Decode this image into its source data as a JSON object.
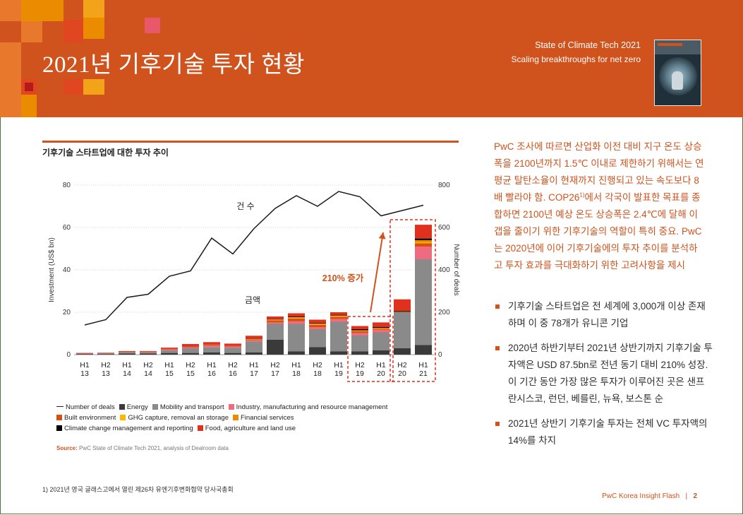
{
  "header": {
    "title": "2021년 기후기술 투자 현황",
    "report_title": "State of Climate Tech 2021",
    "report_subtitle": "Scaling breakthroughs for net zero"
  },
  "chart_title": "기후기술 스타트업에 대한 투자 추이",
  "chart_data": {
    "type": "bar",
    "categories": [
      [
        "H1",
        "13"
      ],
      [
        "H2",
        "13"
      ],
      [
        "H1",
        "14"
      ],
      [
        "H2",
        "14"
      ],
      [
        "H1",
        "15"
      ],
      [
        "H2",
        "15"
      ],
      [
        "H1",
        "16"
      ],
      [
        "H2",
        "16"
      ],
      [
        "H1",
        "17"
      ],
      [
        "H2",
        "17"
      ],
      [
        "H1",
        "18"
      ],
      [
        "H2",
        "18"
      ],
      [
        "H1",
        "19"
      ],
      [
        "H2",
        "19"
      ],
      [
        "H1",
        "20"
      ],
      [
        "H2",
        "20"
      ],
      [
        "H1",
        "21"
      ]
    ],
    "ylabel": "Investment (US$ bn)",
    "y2label": "Number of deals",
    "ylim": [
      0,
      80
    ],
    "y2lim": [
      0,
      800
    ],
    "yticks": [
      "0",
      "20",
      "40",
      "60",
      "80"
    ],
    "y2ticks": [
      "0",
      "200",
      "400",
      "600",
      "800"
    ],
    "series": [
      {
        "name": "Energy",
        "color": "#3a3a3a",
        "values": [
          0.3,
          0.3,
          0.6,
          0.5,
          0.8,
          0.8,
          1.0,
          0.8,
          1.0,
          7.0,
          1.5,
          3.5,
          1.5,
          1.5,
          2.0,
          3.0,
          4.5
        ]
      },
      {
        "name": "Mobility and transport",
        "color": "#8a8a8a",
        "values": [
          0.2,
          0.3,
          0.6,
          0.6,
          1.3,
          2.2,
          2.6,
          2.5,
          5.2,
          7.5,
          13.0,
          8.5,
          14.0,
          7.5,
          8.5,
          17.0,
          40.5
        ]
      },
      {
        "name": "Industry, manufacturing and resource management",
        "color": "#ee6b80",
        "values": [
          0.1,
          0.1,
          0.1,
          0.1,
          0.4,
          0.5,
          0.7,
          0.5,
          0.6,
          0.7,
          1.2,
          1.0,
          1.3,
          1.2,
          1.2,
          0,
          6.0
        ]
      },
      {
        "name": "Built environment",
        "color": "#d84f14",
        "values": [
          0.1,
          0.1,
          0.2,
          0.2,
          0.3,
          0.3,
          0.6,
          0.4,
          0.4,
          1.0,
          1.4,
          1.0,
          1.1,
          0.8,
          0.5,
          0,
          1.5
        ]
      },
      {
        "name": "GHG capture, removal an storage",
        "color": "#ffb600",
        "values": [
          0,
          0,
          0,
          0,
          0,
          0,
          0,
          0,
          0.1,
          0.2,
          0.3,
          0.3,
          0.3,
          0.2,
          0.1,
          0,
          0.5
        ]
      },
      {
        "name": "Financial services",
        "color": "#eb8c00",
        "values": [
          0,
          0,
          0,
          0,
          0,
          0,
          0,
          0,
          0.2,
          0.2,
          0.3,
          0.3,
          0.3,
          0.3,
          0.3,
          0.2,
          1.0
        ]
      },
      {
        "name": "Climate change management and reporting",
        "color": "#000000",
        "values": [
          0,
          0,
          0,
          0,
          0,
          0,
          0,
          0,
          0.1,
          0.2,
          0.3,
          0.3,
          0.3,
          0.5,
          0.4,
          0.4,
          0.8
        ]
      },
      {
        "name": "Food, agriculture and land use",
        "color": "#e0301e",
        "values": [
          0.1,
          0.1,
          0.2,
          0.3,
          0.5,
          1.2,
          1.0,
          1.0,
          1.3,
          1.2,
          1.5,
          1.6,
          1.2,
          1.5,
          2.2,
          5.5,
          6.5
        ]
      }
    ],
    "deals": {
      "name": "Number of deals",
      "values": [
        140,
        165,
        270,
        285,
        370,
        395,
        550,
        475,
        595,
        690,
        750,
        700,
        770,
        745,
        655,
        680,
        705
      ]
    },
    "annotations": {
      "deals_label": "건 수",
      "investment_label": "금액",
      "growth_label": "210% 증가"
    }
  },
  "legend_rows": [
    [
      {
        "type": "line",
        "label": "Number of deals"
      },
      {
        "type": "swatch",
        "color": "#3a3a3a",
        "label": "Energy"
      },
      {
        "type": "swatch",
        "color": "#8a8a8a",
        "label": "Mobility and transport"
      },
      {
        "type": "swatch",
        "color": "#ee6b80",
        "label": "Industry, manufacturing and resource management"
      }
    ],
    [
      {
        "type": "swatch",
        "color": "#d84f14",
        "label": "Built environment"
      },
      {
        "type": "swatch",
        "color": "#ffb600",
        "label": "GHG capture, removal an storage"
      },
      {
        "type": "swatch",
        "color": "#eb8c00",
        "label": "Financial services"
      }
    ],
    [
      {
        "type": "swatch",
        "color": "#000000",
        "label": "Climate change management and reporting"
      },
      {
        "type": "swatch",
        "color": "#e0301e",
        "label": "Food, agriculture and land use"
      }
    ]
  ],
  "source_label": "Source:",
  "source_text": " PwC State of Climate Tech 2021, analysis of Dealroom data",
  "right_para_a": "PwC 조사에 따르면 산업화 이전 대비 지구 온도 상승폭을 2100년까지 1.5℃ 이내로 제한하기 위해서는 연평균 탈탄소율이 현재까지 진행되고 있는 속도보다 8배 빨라야 함. COP26",
  "right_para_sup": "1)",
  "right_para_b": "에서 각국이 발표한 목표를 종합하면 2100년 예상 온도 상승폭은 2.4℃에 달해 이 갭을 줄이기 위한 기후기술의 역할이 특히 중요. PwC는 2020년에 이어 기후기술에의 투자 추이를 분석하고 투자 효과를 극대화하기 위한 고려사항을 제시",
  "bullets": [
    "기후기술 스타트업은 전 세계에 3,000개 이상 존재하며 이 중 78개가 유니콘 기업",
    "2020년 하반기부터 2021년 상반기까지 기후기술 투자액은 USD 87.5bn로 전년 동기 대비 210% 성장. 이 기간 동안 가장 많은 투자가 이루어진 곳은 샌프란시스코, 런던, 베를린, 뉴욕, 보스톤 순",
    "2021년 상반기 기후기술 투자는 전체 VC 투자액의 14%를 차지"
  ],
  "footnote": "1) 2021년 영국 글래스고에서 열린 제26차 유엔기후변화협약 당사국총회",
  "footer": {
    "brand": "PwC Korea Insight Flash",
    "sep": "|",
    "page": "2"
  },
  "colors": {
    "accent": "#d0521c",
    "header_bg": "#d0521c"
  }
}
